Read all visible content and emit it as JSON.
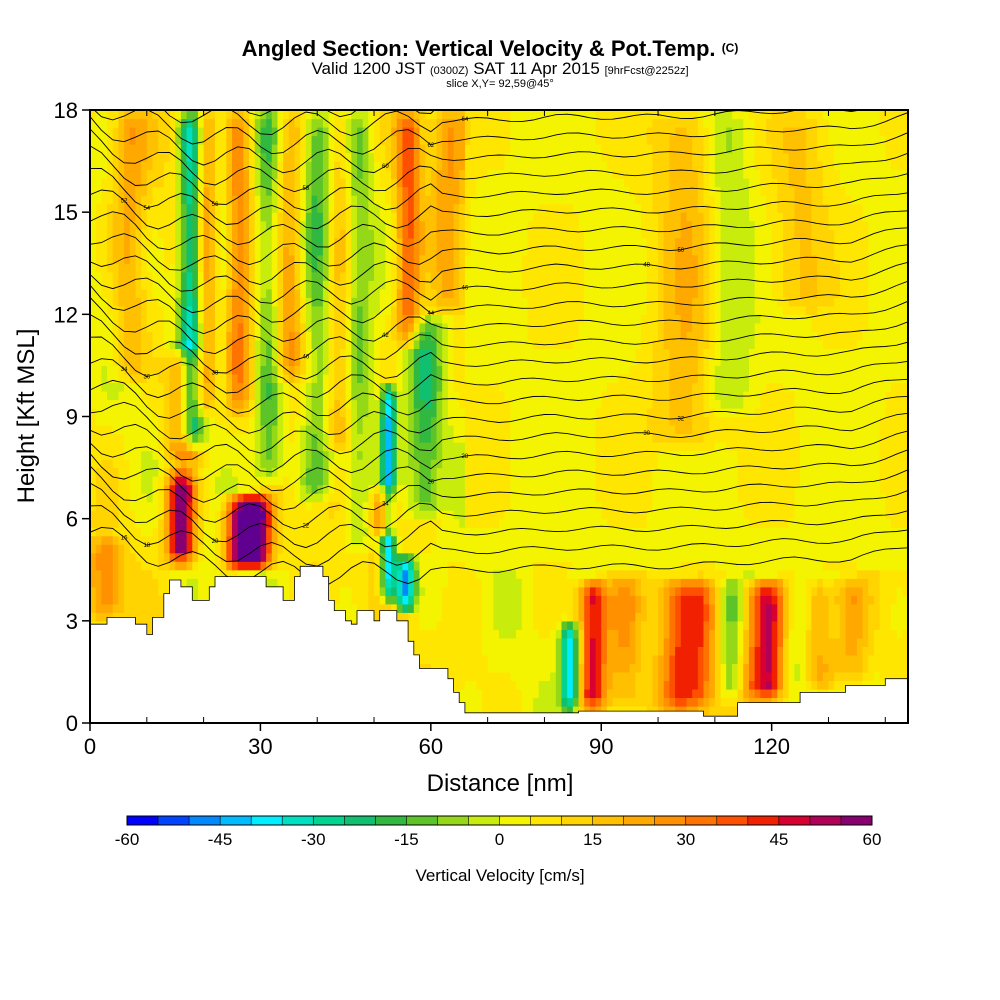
{
  "title": {
    "main": "Angled Section: Vertical Velocity & Pot.Temp.",
    "main_suffix": "(C)",
    "valid_a": "Valid 1200 JST",
    "valid_b": "(0300Z)",
    "valid_c": "SAT 11 Apr 2015",
    "valid_d": "[9hrFcst@2252z]",
    "slice": "slice X,Y= 92,59@45°"
  },
  "chart_data": {
    "type": "heatmap",
    "xlabel": "Distance [nm]",
    "ylabel": "Height [Kft MSL]",
    "xlim": [
      0,
      144
    ],
    "ylim": [
      0,
      18
    ],
    "xticks": [
      0,
      30,
      60,
      90,
      120
    ],
    "yticks": [
      0,
      3,
      6,
      9,
      12,
      15,
      18
    ],
    "colorbar": {
      "label": "Vertical Velocity [cm/s]",
      "ticks": [
        -60,
        -45,
        -30,
        -15,
        0,
        15,
        30,
        45,
        60
      ],
      "levels": [
        -60,
        -55,
        -50,
        -45,
        -40,
        -35,
        -30,
        -25,
        -20,
        -15,
        -10,
        -5,
        0,
        5,
        10,
        15,
        20,
        25,
        30,
        35,
        40,
        45,
        50,
        55,
        60
      ],
      "colors": [
        "#0000ff",
        "#0044ff",
        "#0088ff",
        "#00bbff",
        "#00eeff",
        "#00e0c0",
        "#00d490",
        "#10c070",
        "#30b840",
        "#5cc428",
        "#94d818",
        "#c8ec0c",
        "#f4f400",
        "#ffe600",
        "#ffd400",
        "#ffc000",
        "#ffa800",
        "#ff9000",
        "#ff7400",
        "#ff5000",
        "#f02000",
        "#d80030",
        "#b00058",
        "#880070",
        "#600090"
      ]
    },
    "terrain": [
      [
        0,
        2.9
      ],
      [
        3,
        2.9
      ],
      [
        3,
        3.1
      ],
      [
        8,
        3.1
      ],
      [
        8,
        2.9
      ],
      [
        10,
        2.9
      ],
      [
        10,
        2.6
      ],
      [
        11,
        2.6
      ],
      [
        11,
        3.1
      ],
      [
        13,
        3.1
      ],
      [
        13,
        3.8
      ],
      [
        14,
        3.8
      ],
      [
        14,
        4.2
      ],
      [
        16,
        4.2
      ],
      [
        16,
        4.0
      ],
      [
        18,
        4.0
      ],
      [
        18,
        3.6
      ],
      [
        21,
        3.6
      ],
      [
        21,
        4.0
      ],
      [
        22,
        4.0
      ],
      [
        22,
        4.3
      ],
      [
        31,
        4.3
      ],
      [
        31,
        4.0
      ],
      [
        34,
        4.0
      ],
      [
        34,
        3.6
      ],
      [
        36,
        3.6
      ],
      [
        36,
        4.3
      ],
      [
        37,
        4.3
      ],
      [
        37,
        4.6
      ],
      [
        41,
        4.6
      ],
      [
        41,
        4.3
      ],
      [
        42,
        4.3
      ],
      [
        42,
        3.6
      ],
      [
        43,
        3.6
      ],
      [
        43,
        3.3
      ],
      [
        45,
        3.3
      ],
      [
        45,
        3.0
      ],
      [
        46,
        3.0
      ],
      [
        46,
        2.9
      ],
      [
        47,
        2.9
      ],
      [
        47,
        3.3
      ],
      [
        50,
        3.3
      ],
      [
        50,
        3.0
      ],
      [
        51,
        3.0
      ],
      [
        51,
        3.3
      ],
      [
        54,
        3.3
      ],
      [
        54,
        3.0
      ],
      [
        56,
        3.0
      ],
      [
        56,
        2.4
      ],
      [
        57,
        2.4
      ],
      [
        57,
        2.0
      ],
      [
        58,
        2.0
      ],
      [
        58,
        1.6
      ],
      [
        63,
        1.6
      ],
      [
        63,
        1.3
      ],
      [
        64,
        1.3
      ],
      [
        64,
        0.9
      ],
      [
        65,
        0.9
      ],
      [
        65,
        0.6
      ],
      [
        66,
        0.6
      ],
      [
        66,
        0.3
      ],
      [
        86,
        0.3
      ],
      [
        86,
        0.35
      ],
      [
        108,
        0.35
      ],
      [
        108,
        0.2
      ],
      [
        114,
        0.2
      ],
      [
        114,
        0.6
      ],
      [
        125,
        0.6
      ],
      [
        125,
        0.9
      ],
      [
        133,
        0.9
      ],
      [
        133,
        1.1
      ],
      [
        140,
        1.1
      ],
      [
        140,
        1.3
      ],
      [
        144,
        1.3
      ]
    ],
    "thermo_columns": [
      {
        "x": 3,
        "w": 3,
        "z0": 3.0,
        "z1": 5.5,
        "v": 22
      },
      {
        "x": 7,
        "w": 3,
        "z0": 10.0,
        "z1": 18.0,
        "v": 16
      },
      {
        "x": 16,
        "w": 2.5,
        "z0": 4.6,
        "z1": 7.5,
        "v": 55
      },
      {
        "x": 16.5,
        "w": 3,
        "z0": 7.5,
        "z1": 11.0,
        "v": 30
      },
      {
        "x": 18,
        "w": 2.2,
        "z0": 8.0,
        "z1": 18.0,
        "v": -45
      },
      {
        "x": 20.5,
        "w": 2.4,
        "z0": 9.0,
        "z1": 18.0,
        "v": 28
      },
      {
        "x": 23,
        "w": 2.2,
        "z0": 9.0,
        "z1": 18.0,
        "v": -25
      },
      {
        "x": 26,
        "w": 2.4,
        "z0": 4.4,
        "z1": 6.8,
        "v": 48
      },
      {
        "x": 29.5,
        "w": 2.6,
        "z0": 4.4,
        "z1": 6.8,
        "v": 58
      },
      {
        "x": 25.5,
        "w": 3,
        "z0": 9.0,
        "z1": 18.0,
        "v": 24
      },
      {
        "x": 31.5,
        "w": 2.6,
        "z0": 7.0,
        "z1": 18.0,
        "v": -22
      },
      {
        "x": 35,
        "w": 3,
        "z0": 10.0,
        "z1": 18.0,
        "v": 20
      },
      {
        "x": 40,
        "w": 3,
        "z0": 6.5,
        "z1": 18.0,
        "v": -20
      },
      {
        "x": 44,
        "w": 2.6,
        "z0": 8.0,
        "z1": 18.0,
        "v": 18
      },
      {
        "x": 47,
        "w": 2.6,
        "z0": 5.0,
        "z1": 18.0,
        "v": -16
      },
      {
        "x": 52.5,
        "w": 1.3,
        "z0": 3.5,
        "z1": 10.0,
        "v": -45
      },
      {
        "x": 52,
        "w": 2.0,
        "z0": 5.4,
        "z1": 7.0,
        "v": 42
      },
      {
        "x": 55.5,
        "w": 1.8,
        "z0": 3.2,
        "z1": 5.0,
        "v": -55
      },
      {
        "x": 56,
        "w": 2.2,
        "z0": 11.0,
        "z1": 18.0,
        "v": 30
      },
      {
        "x": 59,
        "w": 3,
        "z0": 6.0,
        "z1": 12.0,
        "v": -20
      },
      {
        "x": 63,
        "w": 3,
        "z0": 12.0,
        "z1": 18.0,
        "v": 15
      },
      {
        "x": 84.5,
        "w": 1.6,
        "z0": 0.3,
        "z1": 3.0,
        "v": -45
      },
      {
        "x": 88.5,
        "w": 2.4,
        "z0": 0.3,
        "z1": 4.3,
        "v": 42
      },
      {
        "x": 94,
        "w": 3,
        "z0": 0.3,
        "z1": 4.3,
        "v": 15
      },
      {
        "x": 104,
        "w": 3.5,
        "z0": 0.3,
        "z1": 4.3,
        "v": 30
      },
      {
        "x": 108,
        "w": 3,
        "z0": 0.3,
        "z1": 4.3,
        "v": 18
      },
      {
        "x": 113,
        "w": 2.5,
        "z0": 0.6,
        "z1": 4.3,
        "v": -20
      },
      {
        "x": 117,
        "w": 3,
        "z0": 0.6,
        "z1": 4.3,
        "v": 25
      },
      {
        "x": 120,
        "w": 2.5,
        "z0": 0.6,
        "z1": 4.3,
        "v": 35
      },
      {
        "x": 125,
        "w": 3,
        "z0": 0.9,
        "z1": 4.3,
        "v": -10
      },
      {
        "x": 128,
        "w": 3,
        "z0": 0.9,
        "z1": 4.3,
        "v": 22
      },
      {
        "x": 134,
        "w": 3,
        "z0": 1.1,
        "z1": 4.3,
        "v": 16
      },
      {
        "x": 105,
        "w": 6,
        "z0": 8.0,
        "z1": 18.0,
        "v": 15
      },
      {
        "x": 112,
        "w": 4,
        "z0": 9.0,
        "z1": 18.0,
        "v": -12
      },
      {
        "x": 125,
        "w": 5,
        "z0": 12.0,
        "z1": 18.0,
        "v": 12
      }
    ],
    "theta_contours": {
      "base_height": [
        5.6,
        5.0,
        4.6,
        4.4,
        4.4,
        4.4,
        4.5,
        4.5,
        4.6,
        4.6,
        4.6,
        4.7,
        4.8,
        4.8,
        5.2
      ],
      "spacing": 0.55,
      "labels": [
        "16",
        "18",
        "20",
        "22",
        "24",
        "26",
        "28",
        "30",
        "32",
        "34",
        "36",
        "38",
        "40",
        "42",
        "44",
        "46",
        "48",
        "50",
        "52",
        "54",
        "56",
        "58",
        "60",
        "62",
        "64",
        "66"
      ]
    }
  }
}
